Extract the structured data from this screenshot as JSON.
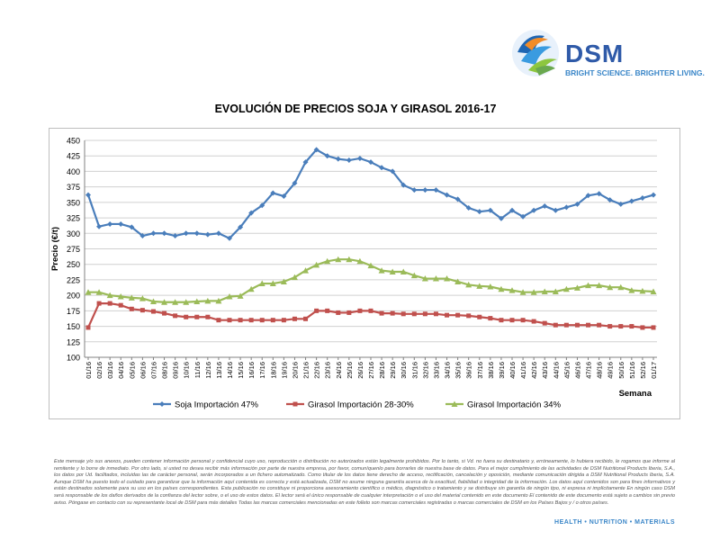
{
  "brand": {
    "name": "DSM",
    "tagline": "BRIGHT SCIENCE. BRIGHTER LIVING.",
    "colors": {
      "blue": "#2f5aa8",
      "lightblue": "#3a86c8",
      "orange": "#f28c28",
      "green": "#8dc63f",
      "red": "#e23b3b"
    }
  },
  "chart_data": {
    "type": "line",
    "title": "EVOLUCIÓN DE PRECIOS SOJA Y GIRASOL 2016-17",
    "xlabel": "Semana",
    "ylabel": "Precio (€/t)",
    "ylim": [
      100,
      450
    ],
    "yticks": [
      100,
      125,
      150,
      175,
      200,
      225,
      250,
      275,
      300,
      325,
      350,
      375,
      400,
      425,
      450
    ],
    "grid": true,
    "legend": "bottom",
    "x": [
      "01/16",
      "02/16",
      "03/16",
      "04/16",
      "05/16",
      "06/16",
      "07/16",
      "08/16",
      "09/16",
      "10/16",
      "11/16",
      "12/16",
      "13/16",
      "14/16",
      "15/16",
      "16/16",
      "17/16",
      "18/16",
      "19/16",
      "20/16",
      "21/16",
      "22/16",
      "23/16",
      "24/16",
      "25/16",
      "26/16",
      "27/16",
      "28/16",
      "29/16",
      "30/16",
      "31/16",
      "32/16",
      "33/16",
      "34/16",
      "35/16",
      "36/16",
      "37/16",
      "38/16",
      "39/16",
      "40/16",
      "41/16",
      "42/16",
      "43/16",
      "44/16",
      "45/16",
      "46/16",
      "47/16",
      "48/16",
      "49/16",
      "50/16",
      "51/16",
      "52/16",
      "01/17"
    ],
    "series": [
      {
        "name": "Soja Importación 47%",
        "color": "#4a7ebb",
        "marker": "diamond",
        "values": [
          362,
          311,
          315,
          315,
          310,
          296,
          300,
          300,
          296,
          300,
          300,
          298,
          300,
          292,
          310,
          333,
          345,
          365,
          360,
          381,
          415,
          435,
          425,
          420,
          418,
          421,
          415,
          406,
          400,
          378,
          370,
          370,
          370,
          362,
          355,
          341,
          335,
          337,
          324,
          337,
          327,
          337,
          344,
          337,
          342,
          347,
          361,
          364,
          354,
          347,
          352,
          357,
          362
        ]
      },
      {
        "name": "Girasol Importación 28-30%",
        "color": "#c0504d",
        "marker": "square",
        "values": [
          148,
          187,
          187,
          184,
          178,
          176,
          174,
          171,
          167,
          165,
          165,
          165,
          160,
          160,
          160,
          160,
          160,
          160,
          160,
          162,
          162,
          175,
          175,
          172,
          172,
          175,
          175,
          171,
          171,
          170,
          170,
          170,
          170,
          168,
          168,
          167,
          165,
          163,
          160,
          160,
          160,
          158,
          155,
          152,
          152,
          152,
          152,
          152,
          150,
          150,
          150,
          148,
          148
        ]
      },
      {
        "name": "Girasol Importación 34%",
        "color": "#9bbb59",
        "marker": "triangle",
        "values": [
          205,
          205,
          200,
          198,
          196,
          195,
          190,
          189,
          189,
          189,
          190,
          191,
          191,
          198,
          199,
          210,
          219,
          219,
          222,
          229,
          240,
          249,
          255,
          258,
          258,
          255,
          248,
          240,
          238,
          238,
          232,
          227,
          227,
          227,
          222,
          217,
          215,
          214,
          210,
          208,
          205,
          205,
          206,
          206,
          210,
          212,
          216,
          216,
          213,
          213,
          208,
          207,
          206
        ]
      }
    ]
  },
  "disclaimer": "Este mensaje y/o sus anexos, pueden contener información personal y confidencial cuyo uso, reproducción o distribución no autorizados están legalmente prohibidos. Por lo tanto, si Vd. no fuera su destinatario y, erróneamente, lo hubiera recibido, le rogamos que informe al remitente y lo borre de inmediato. Por otro lado, si usted no desea recibir más información por parte de nuestra empresa, por favor, comuníquenlo para borrarles de nuestra base de datos. Para el mejor cumplimiento de las actividades de DSM Nutritional Products Iberia, S.A., los datos por Ud. facilitados, incluidas las de carácter personal, serán incorporados a un fichero automatizado. Como titular de los datos tiene derecho de acceso, rectificación, cancelación y oposición, mediante comunicación dirigida a DSM Nutritional Products Iberia, S.A. Aunque DSM ha puesto todo el cuidado para garantizar que la información aquí contenida es correcta y está actualizada, DSM no asume ninguna garantía acerca de la exactitud, fiabilidad o integridad de la información. Los datos aquí contenidos son para fines informativos y están destinados solamente para su uso en los países correspondientes. Esta publicación no constituye ni proporciona asesoramiento científico o médico, diagnóstico o tratamiento y se distribuye sin garantía de ningún tipo, ni expresa ni implícitamente En ningún caso DSM será responsable de los daños derivados de la confianza del lector sobre, o el uso de estos datos. El lector será el único responsable de cualquier interpretación o el uso del material contenido en este documento El contenido de este documento está sujeto a cambios sin previo aviso. Póngase en contacto con su representante local de DSM para más detalles Todas las marcas comerciales mencionadas en este folleto son marcas comerciales registradas o marcas comerciales de DSM en los Países Bajos y / o otros países.",
  "footer": "HEALTH • NUTRITION • MATERIALS"
}
